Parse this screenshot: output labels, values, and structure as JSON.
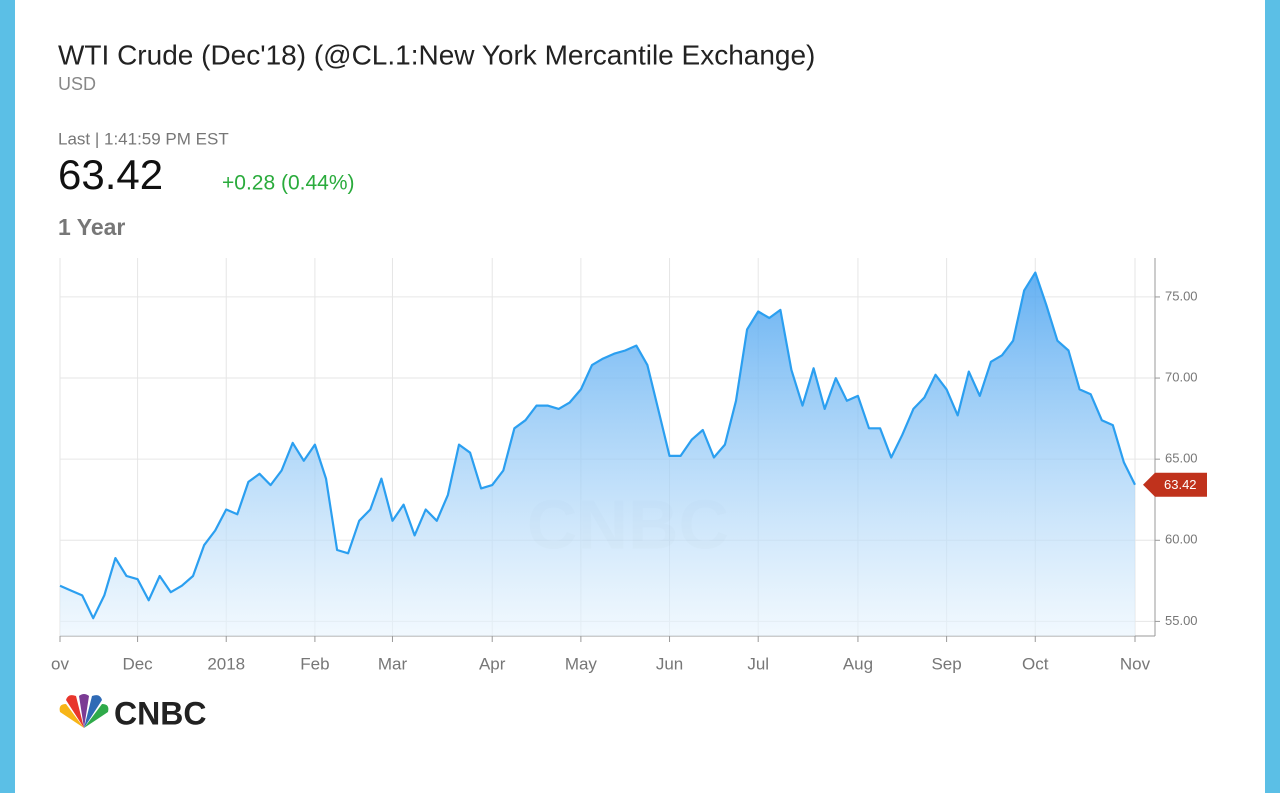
{
  "header": {
    "title": "WTI Crude (Dec'18) (@CL.1:New York Mercantile Exchange)",
    "currency": "USD",
    "last_label": "Last | 1:41:59 PM EST",
    "price": 63.42,
    "change": "+0.28 (0.44%)",
    "range": "1 Year",
    "logo": "CNBC"
  },
  "chart_data": {
    "type": "line",
    "color": "#2b9ff0",
    "categories": [
      "ov",
      null,
      null,
      null,
      null,
      null,
      null,
      "Dec",
      null,
      null,
      null,
      null,
      null,
      null,
      null,
      "2018",
      null,
      null,
      null,
      null,
      null,
      null,
      null,
      "Feb",
      null,
      null,
      null,
      null,
      null,
      null,
      "Mar",
      null,
      null,
      null,
      null,
      null,
      null,
      null,
      null,
      "Apr",
      null,
      null,
      null,
      null,
      null,
      null,
      null,
      "May",
      null,
      null,
      null,
      null,
      null,
      null,
      null,
      "Jun",
      null,
      null,
      null,
      null,
      null,
      null,
      null,
      "Jul",
      null,
      null,
      null,
      null,
      null,
      null,
      null,
      null,
      "Aug",
      null,
      null,
      null,
      null,
      null,
      null,
      null,
      "Sep",
      null,
      null,
      null,
      null,
      null,
      null,
      null,
      "Oct",
      null,
      null,
      null,
      null,
      null,
      null,
      null,
      null,
      "Nov"
    ],
    "values": [
      57.2,
      56.9,
      56.6,
      55.2,
      56.6,
      58.9,
      57.8,
      57.6,
      56.3,
      57.8,
      56.8,
      57.2,
      57.8,
      59.7,
      60.6,
      61.9,
      61.6,
      63.6,
      64.1,
      63.4,
      64.3,
      66.0,
      64.9,
      65.9,
      63.8,
      59.4,
      59.2,
      61.2,
      61.9,
      63.8,
      61.2,
      62.2,
      60.3,
      61.9,
      61.2,
      62.8,
      65.9,
      65.4,
      63.2,
      63.4,
      64.3,
      66.9,
      67.4,
      68.3,
      68.3,
      68.1,
      68.5,
      69.3,
      70.8,
      71.2,
      71.5,
      71.7,
      72.0,
      70.8,
      68.0,
      65.2,
      65.2,
      66.2,
      66.8,
      65.1,
      65.9,
      68.6,
      73.0,
      74.1,
      73.7,
      74.2,
      70.5,
      68.3,
      70.6,
      68.1,
      70.0,
      68.6,
      68.9,
      66.9,
      66.9,
      65.1,
      66.5,
      68.1,
      68.8,
      70.2,
      69.3,
      67.7,
      70.4,
      68.9,
      71.0,
      71.4,
      72.3,
      75.4,
      76.5,
      74.5,
      72.3,
      71.7,
      69.3,
      69.0,
      67.4,
      67.1,
      64.8,
      63.42
    ],
    "ylim": [
      54.1,
      77.4
    ],
    "yticks": [
      {
        "value": 55,
        "label": "55.00"
      },
      {
        "value": 60,
        "label": "60.00"
      },
      {
        "value": 65,
        "label": "65.00"
      },
      {
        "value": 70,
        "label": "70.00"
      },
      {
        "value": 75,
        "label": "75.00"
      }
    ],
    "grid": true
  }
}
